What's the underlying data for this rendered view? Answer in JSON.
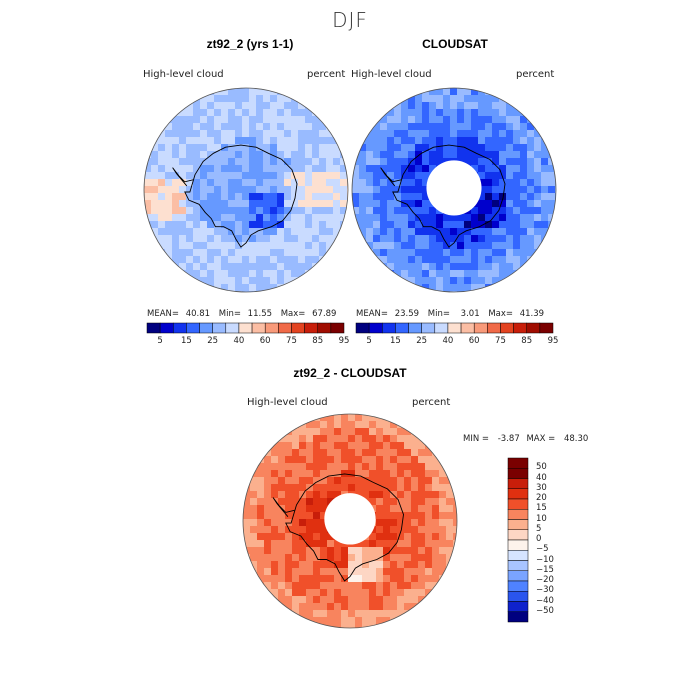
{
  "title": "DJF",
  "panels": [
    {
      "title": "zt92_2 (yrs 1-1)",
      "variable": "High-level cloud",
      "units": "percent",
      "stats": {
        "mean_label": "MEAN=",
        "mean": "40.81",
        "min_label": "Min=",
        "min": "11.55",
        "max_label": "Max=",
        "max": "67.89"
      },
      "colorbar": {
        "ticks": [
          "5",
          "15",
          "25",
          "40",
          "60",
          "75",
          "85",
          "95"
        ]
      }
    },
    {
      "title": "CLOUDSAT",
      "variable": "High-level cloud",
      "units": "percent",
      "stats": {
        "mean_label": "MEAN=",
        "mean": "23.59",
        "min_label": "Min=",
        "min": "3.01",
        "max_label": "Max=",
        "max": "41.39"
      },
      "colorbar": {
        "ticks": [
          "5",
          "15",
          "25",
          "40",
          "60",
          "75",
          "85",
          "95"
        ]
      }
    },
    {
      "title": "zt92_2 - CLOUDSAT",
      "variable": "High-level cloud",
      "units": "percent",
      "stats": {
        "min_label": "MIN =",
        "min": "-3.87",
        "max_label": "MAX =",
        "max": "48.30"
      },
      "colorbar": {
        "ticks": [
          "50",
          "40",
          "30",
          "20",
          "15",
          "10",
          "5",
          "0",
          "−5",
          "−10",
          "−15",
          "−20",
          "−30",
          "−40",
          "−50"
        ]
      }
    }
  ],
  "colors": {
    "cloud_scale": [
      "#00007f",
      "#0000cc",
      "#1133ee",
      "#3366ff",
      "#6699ff",
      "#99bbff",
      "#c9dbff",
      "#fde0d0",
      "#fbbea4",
      "#f89a7a",
      "#f06a48",
      "#e34320",
      "#c81e0a",
      "#a00c00",
      "#7a0000"
    ],
    "diff_scale": [
      "#7a0000",
      "#c81e0a",
      "#e03010",
      "#f0502a",
      "#f8845e",
      "#fbb08e",
      "#fdd6c4",
      "#fdf3ec",
      "#d6e4ff",
      "#a8c4ff",
      "#7aa4ff",
      "#4f82ff",
      "#2a55ee",
      "#0f22cc",
      "#00007f"
    ]
  },
  "chart_data": [
    {
      "type": "heatmap",
      "map": "south-polar-stereographic",
      "title": "zt92_2 (yrs 1-1)",
      "variable": "High-level cloud",
      "units": "percent",
      "levels": [
        5,
        15,
        25,
        40,
        60,
        75,
        85,
        95
      ],
      "mean": 40.81,
      "min": 11.55,
      "max": 67.89
    },
    {
      "type": "heatmap",
      "map": "south-polar-stereographic",
      "title": "CLOUDSAT",
      "variable": "High-level cloud",
      "units": "percent",
      "levels": [
        5,
        15,
        25,
        40,
        60,
        75,
        85,
        95
      ],
      "mean": 23.59,
      "min": 3.01,
      "max": 41.39
    },
    {
      "type": "heatmap",
      "map": "south-polar-stereographic",
      "title": "zt92_2 - CLOUDSAT",
      "variable": "High-level cloud",
      "units": "percent",
      "levels": [
        -50,
        -40,
        -30,
        -20,
        -15,
        -10,
        -5,
        0,
        5,
        10,
        15,
        20,
        30,
        40,
        50
      ],
      "min": -3.87,
      "max": 48.3
    }
  ]
}
